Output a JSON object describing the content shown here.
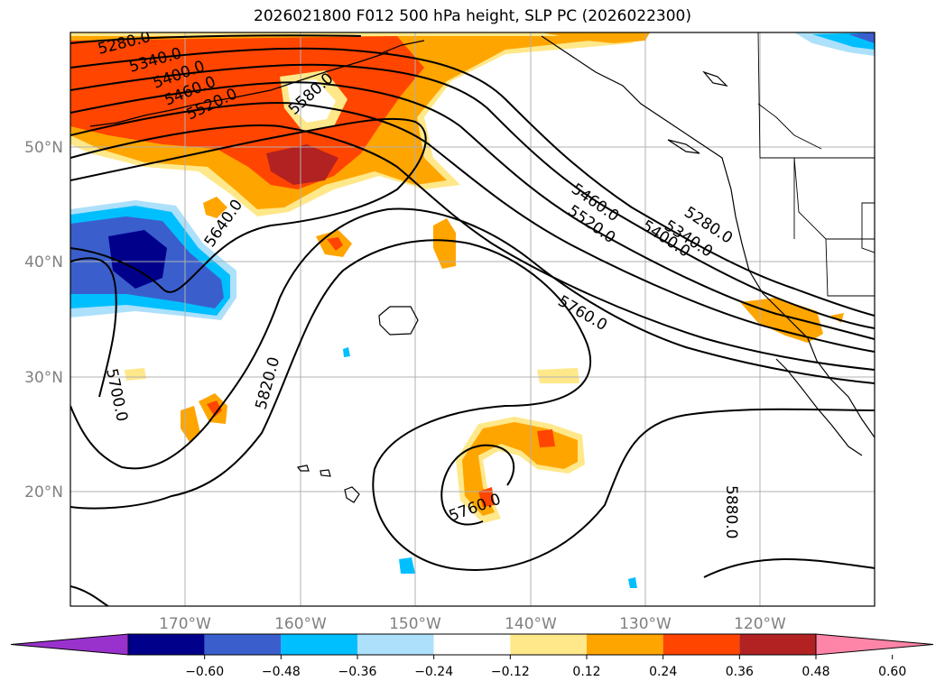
{
  "title": "2026021800 F012 500 hPa height, SLP PC (2026022300)",
  "latitude_labels": [
    "50°N",
    "40°N",
    "30°N",
    "20°N"
  ],
  "longitude_labels": [
    "170°W",
    "160°W",
    "150°W",
    "140°W",
    "130°W",
    "120°W"
  ],
  "contour_labels": [
    "5280.0",
    "5340.0",
    "5400.0",
    "5460.0",
    "5520.0",
    "5580.0",
    "5640.0",
    "5700.0",
    "5820.0",
    "5460.0",
    "5520.0",
    "5400.0",
    "5340.0",
    "5280.0",
    "5760.0",
    "5760.0",
    "5880.0"
  ],
  "colorbar": {
    "ticks": [
      "−0.60",
      "−0.48",
      "−0.36",
      "−0.24",
      "−0.12",
      "0.12",
      "0.24",
      "0.36",
      "0.48",
      "0.60"
    ],
    "colors": [
      "#9932CC",
      "#00008B",
      "#3A5FCD",
      "#00BFFF",
      "#ADE0FA",
      "#FFFFFF",
      "#FFE88A",
      "#FFA500",
      "#FF4500",
      "#B22222",
      "#FF85A8"
    ]
  }
}
